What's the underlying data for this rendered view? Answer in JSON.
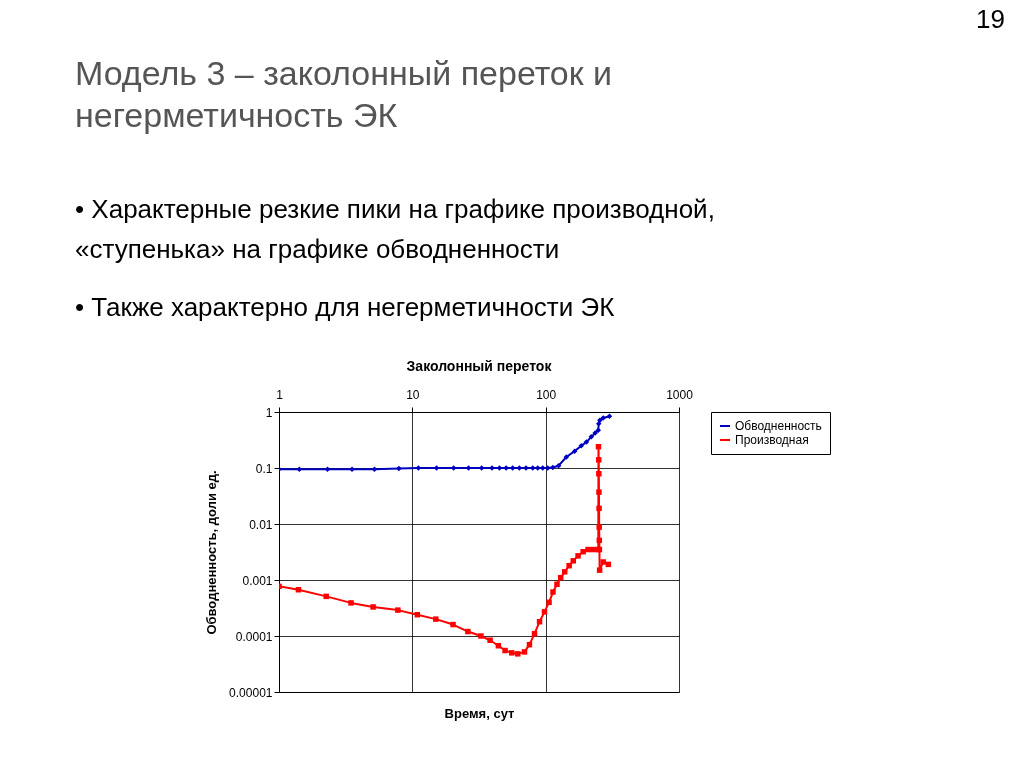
{
  "chart_data": {
    "type": "line",
    "title": "Заколонный переток",
    "xlabel": "Время, сут",
    "ylabel": "Обводненность, доли ед.",
    "annotations": [
      "Модель 3 – заколонный переток и негерметичность ЭК",
      "• Характерные резкие пики на графике производной, «ступенька» на графике обводненности",
      "• Также характерно для негерметичности ЭК",
      "19"
    ],
    "log": "xy",
    "grid": true,
    "legend": "right",
    "line_style": "solid",
    "xlim": [
      1,
      1000
    ],
    "xticks": [
      1,
      10,
      100,
      1000
    ],
    "ylim": [
      1e-05,
      1
    ],
    "yticks": [
      {
        "value": 1e-05,
        "label": "0.00001"
      },
      0.0001,
      0.001,
      0.01,
      0.1,
      1
    ],
    "series": [
      {
        "name": "Обводненность",
        "color": "#0000c0",
        "marker": "diamond",
        "x": [
          1,
          1.42,
          2.31,
          3.53,
          5.2,
          7.93,
          11.1,
          15.2,
          20.4,
          26.4,
          33.1,
          39.6,
          45,
          50.5,
          56.6,
          63.5,
          71.2,
          80,
          87.2,
          95,
          103.7,
          113,
          125,
          143,
          165,
          185,
          202,
          220,
          235,
          248,
          250,
          255,
          270,
          301
        ],
        "values": [
          0.095,
          0.095,
          0.095,
          0.095,
          0.095,
          0.098,
          0.1,
          0.1,
          0.1,
          0.1,
          0.1,
          0.1,
          0.1,
          0.1,
          0.1,
          0.1,
          0.1,
          0.1,
          0.1,
          0.1,
          0.1,
          0.102,
          0.11,
          0.157,
          0.2,
          0.25,
          0.29,
          0.36,
          0.42,
          0.47,
          0.62,
          0.71,
          0.78,
          0.84
        ]
      },
      {
        "name": "Производная",
        "color": "#ff0000",
        "marker": "square",
        "x": [
          1,
          1.4,
          2.26,
          3.47,
          5.08,
          7.79,
          10.9,
          15,
          20.2,
          26.1,
          32.7,
          38.3,
          44.2,
          49.6,
          55.7,
          61.8,
          69.4,
          75.6,
          82.5,
          90,
          98,
          106,
          113.5,
          121.6,
          129.6,
          139,
          150,
          161,
          175,
          191,
          208,
          227,
          248,
          249,
          250,
          250.5,
          251,
          251.5,
          252,
          252.5,
          253,
          254,
          270,
          295
        ],
        "values": [
          0.00077,
          0.00067,
          0.00051,
          0.00039,
          0.00033,
          0.00029,
          0.00024,
          0.0002,
          0.00016,
          0.00012,
          0.0001,
          8.4e-05,
          6.7e-05,
          5.5e-05,
          5e-05,
          4.8e-05,
          5.2e-05,
          7e-05,
          0.00011,
          0.00018,
          0.00027,
          0.0004,
          0.00061,
          0.00084,
          0.0011,
          0.0014,
          0.0018,
          0.0022,
          0.0027,
          0.0032,
          0.0035,
          0.0035,
          0.0035,
          0.24,
          0.14,
          0.079,
          0.037,
          0.019,
          0.0088,
          0.0051,
          0.0035,
          0.0015,
          0.0021,
          0.0019
        ]
      }
    ]
  }
}
